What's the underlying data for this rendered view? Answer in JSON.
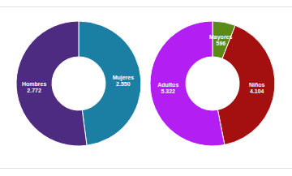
{
  "chart_data": [
    {
      "type": "donut",
      "categories": [
        "Mujeres",
        "Hombres"
      ],
      "values": [
        2550,
        2772
      ],
      "value_labels": [
        "2.550",
        "2.772"
      ],
      "colors": [
        "#1b7fa3",
        "#4d2b80"
      ],
      "data_labels": true
    },
    {
      "type": "donut",
      "categories": [
        "Mayores",
        "Niños",
        "Adultos"
      ],
      "values": [
        596,
        4104,
        5322
      ],
      "value_labels": [
        "596",
        "4.104",
        "5.322"
      ],
      "colors": [
        "#5b8b16",
        "#a3100f",
        "#b31ff2"
      ],
      "data_labels": true
    }
  ]
}
